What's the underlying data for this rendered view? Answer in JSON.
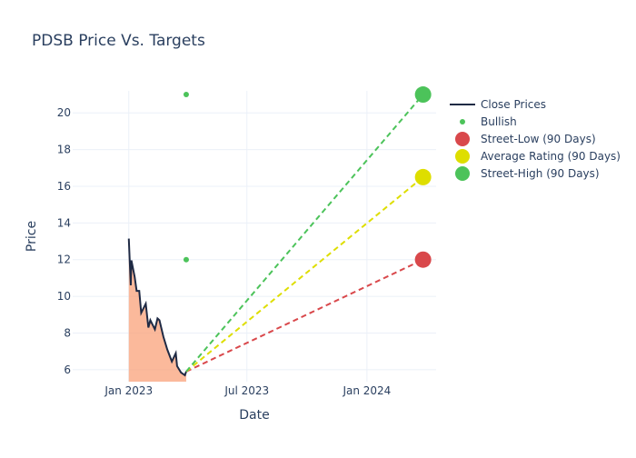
{
  "chart_data": {
    "type": "line",
    "title": "PDSB Price Vs. Targets",
    "xlabel": "Date",
    "ylabel": "Price",
    "xlim": [
      "2022-10-07",
      "2024-04-16"
    ],
    "ylim": [
      5.35,
      21.2
    ],
    "x_ticks": [
      {
        "date": "2023-01-01",
        "label": "Jan 2023"
      },
      {
        "date": "2023-07-01",
        "label": "Jul 2023"
      },
      {
        "date": "2024-01-01",
        "label": "Jan 2024"
      }
    ],
    "y_ticks": [
      6,
      8,
      10,
      12,
      14,
      16,
      18,
      20
    ],
    "grid": true,
    "legend_position": "top-right",
    "colors": {
      "close": "#1f2a44",
      "fill": "#f9a27a",
      "bullish": "#4cc35a",
      "low": "#d9484b",
      "avg": "#dede00",
      "high": "#4cc35a"
    },
    "series": [
      {
        "name": "Close Prices",
        "type": "line",
        "x": [
          "2023-01-01",
          "2023-01-04",
          "2023-01-05",
          "2023-01-10",
          "2023-01-13",
          "2023-01-17",
          "2023-01-20",
          "2023-01-27",
          "2023-01-31",
          "2023-02-03",
          "2023-02-10",
          "2023-02-14",
          "2023-02-17",
          "2023-02-23",
          "2023-03-01",
          "2023-03-08",
          "2023-03-14",
          "2023-03-16",
          "2023-03-22",
          "2023-03-28",
          "2023-03-30"
        ],
        "y": [
          13.15,
          10.6,
          11.96,
          11.06,
          10.3,
          10.3,
          9.1,
          9.6,
          8.3,
          8.7,
          8.2,
          8.8,
          8.7,
          7.8,
          7.1,
          6.45,
          6.9,
          6.2,
          5.85,
          5.7,
          5.9
        ]
      },
      {
        "name": "Bullish",
        "type": "scatter",
        "x": [
          "2023-03-30",
          "2023-03-30"
        ],
        "y": [
          21,
          12
        ]
      },
      {
        "name": "Street-Low (90 Days)",
        "type": "target",
        "from": [
          "2023-03-30",
          5.9
        ],
        "to": [
          "2024-03-27",
          12
        ]
      },
      {
        "name": "Average Rating (90 Days)",
        "type": "target",
        "from": [
          "2023-03-30",
          5.9
        ],
        "to": [
          "2024-03-27",
          16.5
        ]
      },
      {
        "name": "Street-High (90 Days)",
        "type": "target",
        "from": [
          "2023-03-30",
          5.9
        ],
        "to": [
          "2024-03-27",
          21
        ]
      }
    ]
  }
}
